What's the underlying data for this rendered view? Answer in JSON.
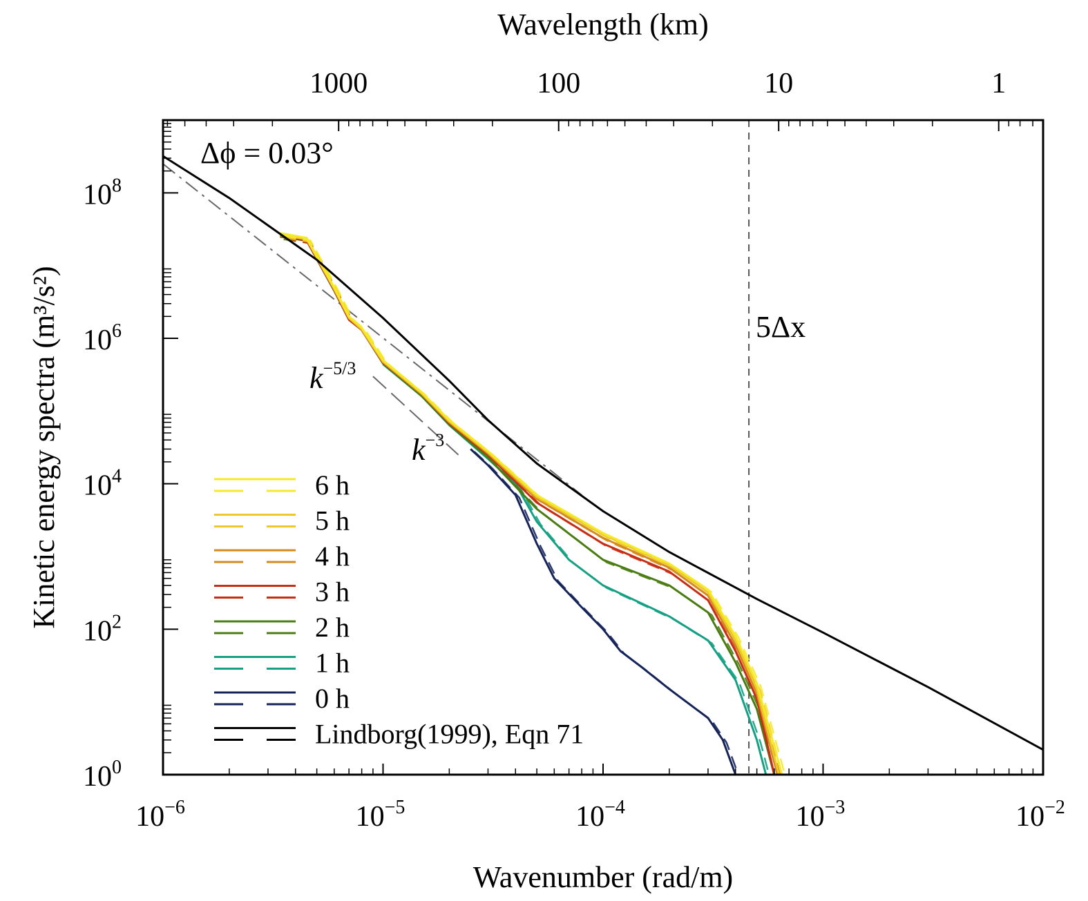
{
  "chart_data": {
    "type": "line",
    "scale": "log-log",
    "xlabel": "Wavenumber (rad/m)",
    "ylabel": "Kinetic energy spectra (m³/s²)",
    "top_xlabel": "Wavelength (km)",
    "xlim": [
      1e-06,
      0.01
    ],
    "ylim": [
      1,
      1000000000.0
    ],
    "x_ticks": [
      {
        "value": 1e-06,
        "base": "10",
        "exp": "−6"
      },
      {
        "value": 1e-05,
        "base": "10",
        "exp": "−5"
      },
      {
        "value": 0.0001,
        "base": "10",
        "exp": "−4"
      },
      {
        "value": 0.001,
        "base": "10",
        "exp": "−3"
      },
      {
        "value": 0.01,
        "base": "10",
        "exp": "−2"
      }
    ],
    "y_ticks": [
      {
        "value": 1,
        "base": "10",
        "exp": "0"
      },
      {
        "value": 100,
        "base": "10",
        "exp": "2"
      },
      {
        "value": 10000,
        "base": "10",
        "exp": "4"
      },
      {
        "value": 1000000,
        "base": "10",
        "exp": "6"
      },
      {
        "value": 100000000,
        "base": "10",
        "exp": "8"
      }
    ],
    "top_ticks": [
      {
        "km": 1000,
        "label": "1000"
      },
      {
        "km": 100,
        "label": "100"
      },
      {
        "km": 10,
        "label": "10"
      },
      {
        "km": 1,
        "label": "1"
      }
    ],
    "annotations": {
      "resolution": "Δϕ = 0.03°",
      "five_dx_label": "5Δx",
      "five_dx_k": 0.00046,
      "k53_base": "k",
      "k53_exp": "−5/3",
      "k3_base": "k",
      "k3_exp": "−3"
    },
    "reference_lines": [
      {
        "name": "k^-5/3",
        "points": [
          [
            1e-06,
            250000000.0
          ],
          [
            8e-05,
            7000
          ]
        ]
      },
      {
        "name": "k^-3",
        "points": [
          [
            9e-06,
            300000
          ],
          [
            2.2e-05,
            25000
          ]
        ]
      }
    ],
    "lindborg": {
      "name": "Lindborg(1999), Eqn 71",
      "color": "#000000",
      "points": [
        [
          1e-06,
          320000000.0
        ],
        [
          2e-06,
          85000000.0
        ],
        [
          5e-06,
          12000000.0
        ],
        [
          1e-05,
          1900000.0
        ],
        [
          2e-05,
          260000.0
        ],
        [
          3e-05,
          75000.0
        ],
        [
          5e-05,
          19000.0
        ],
        [
          0.0001,
          4200
        ],
        [
          0.0002,
          1150
        ],
        [
          0.0005,
          260
        ],
        [
          0.001,
          90
        ],
        [
          0.003,
          16
        ],
        [
          0.01,
          2.2
        ]
      ]
    },
    "series": [
      {
        "name": "6 h",
        "color": "#f5e92a",
        "points": [
          [
            3.4e-06,
            28000000.0
          ],
          [
            4.5e-06,
            24000000.0
          ],
          [
            6e-06,
            5000000.0
          ],
          [
            7e-06,
            2000000.0
          ],
          [
            8e-06,
            1400000.0
          ],
          [
            1e-05,
            500000.0
          ],
          [
            1.5e-05,
            180000.0
          ],
          [
            2e-05,
            75000.0
          ],
          [
            3e-05,
            28000.0
          ],
          [
            5e-05,
            7000.0
          ],
          [
            0.0001,
            2100.0
          ],
          [
            0.0002,
            800
          ],
          [
            0.0003,
            350
          ],
          [
            0.0004,
            80
          ],
          [
            0.0005,
            18
          ],
          [
            0.00065,
            1
          ]
        ]
      },
      {
        "name": "5 h",
        "color": "#edc82a",
        "points": [
          [
            3.4e-06,
            27000000.0
          ],
          [
            4.5e-06,
            23000000.0
          ],
          [
            6e-06,
            4800000.0
          ],
          [
            7e-06,
            1900000.0
          ],
          [
            8e-06,
            1350000.0
          ],
          [
            1e-05,
            480000.0
          ],
          [
            1.5e-05,
            175000.0
          ],
          [
            2e-05,
            72000.0
          ],
          [
            3e-05,
            27000.0
          ],
          [
            5e-05,
            6600.0
          ],
          [
            0.0001,
            2000.0
          ],
          [
            0.0002,
            760
          ],
          [
            0.0003,
            320
          ],
          [
            0.0004,
            70
          ],
          [
            0.0005,
            15
          ],
          [
            0.00063,
            1
          ]
        ]
      },
      {
        "name": "4 h",
        "color": "#d58a1e",
        "points": [
          [
            3.4e-06,
            26000000.0
          ],
          [
            4.5e-06,
            23000000.0
          ],
          [
            6e-06,
            4700000.0
          ],
          [
            7e-06,
            1900000.0
          ],
          [
            8e-06,
            1300000.0
          ],
          [
            1e-05,
            470000.0
          ],
          [
            1.5e-05,
            170000.0
          ],
          [
            2e-05,
            70000.0
          ],
          [
            3e-05,
            26000.0
          ],
          [
            5e-05,
            6200.0
          ],
          [
            0.0001,
            1800.0
          ],
          [
            0.0002,
            700
          ],
          [
            0.0003,
            290
          ],
          [
            0.0004,
            60
          ],
          [
            0.0005,
            13
          ],
          [
            0.00062,
            1
          ]
        ]
      },
      {
        "name": "3 h",
        "color": "#c72d14",
        "points": [
          [
            3.4e-06,
            26000000.0
          ],
          [
            4.5e-06,
            22000000.0
          ],
          [
            6e-06,
            4600000.0
          ],
          [
            7e-06,
            1800000.0
          ],
          [
            8e-06,
            1300000.0
          ],
          [
            1e-05,
            460000.0
          ],
          [
            1.5e-05,
            170000.0
          ],
          [
            2e-05,
            68000.0
          ],
          [
            3e-05,
            25000.0
          ],
          [
            5e-05,
            5500.0
          ],
          [
            0.0001,
            1500.0
          ],
          [
            0.0002,
            620
          ],
          [
            0.0003,
            250
          ],
          [
            0.0004,
            50
          ],
          [
            0.0005,
            11
          ],
          [
            0.0006,
            1
          ]
        ]
      },
      {
        "name": "2 h",
        "color": "#4a7c12",
        "points": [
          [
            3.4e-06,
            25000000.0
          ],
          [
            4.5e-06,
            22000000.0
          ],
          [
            6e-06,
            4500000.0
          ],
          [
            7e-06,
            1800000.0
          ],
          [
            8e-06,
            1300000.0
          ],
          [
            1e-05,
            450000.0
          ],
          [
            1.5e-05,
            160000.0
          ],
          [
            2e-05,
            65000.0
          ],
          [
            3e-05,
            23000.0
          ],
          [
            5e-05,
            4500.0
          ],
          [
            0.0001,
            900
          ],
          [
            0.0002,
            400
          ],
          [
            0.0003,
            170
          ],
          [
            0.0004,
            35
          ],
          [
            0.0005,
            8
          ],
          [
            0.0006,
            1
          ]
        ]
      },
      {
        "name": "1 h",
        "color": "#16a083",
        "points": [
          [
            1e-05,
            440000.0
          ],
          [
            1.5e-05,
            160000.0
          ],
          [
            2e-05,
            64000.0
          ],
          [
            3e-05,
            22000.0
          ],
          [
            4e-05,
            10000.0
          ],
          [
            5e-05,
            3000.0
          ],
          [
            7e-05,
            900
          ],
          [
            0.0001,
            400
          ],
          [
            0.0002,
            150
          ],
          [
            0.0003,
            70
          ],
          [
            0.0004,
            20
          ],
          [
            0.0005,
            3
          ],
          [
            0.00055,
            1
          ]
        ]
      },
      {
        "name": "0 h",
        "color": "#152359",
        "points": [
          [
            2.5e-05,
            30000.0
          ],
          [
            3e-05,
            18000.0
          ],
          [
            4e-05,
            7000.0
          ],
          [
            5e-05,
            1500.0
          ],
          [
            6e-05,
            500
          ],
          [
            8e-05,
            200
          ],
          [
            0.0001,
            100
          ],
          [
            0.00012,
            50
          ],
          [
            0.00015,
            30
          ],
          [
            0.0002,
            15
          ],
          [
            0.0003,
            6
          ],
          [
            0.00035,
            3
          ],
          [
            0.0004,
            1
          ]
        ]
      }
    ],
    "legend": [
      {
        "label": "6 h",
        "color": "#f5e92a"
      },
      {
        "label": "5 h",
        "color": "#edc82a"
      },
      {
        "label": "4 h",
        "color": "#d58a1e"
      },
      {
        "label": "3 h",
        "color": "#c72d14"
      },
      {
        "label": "2 h",
        "color": "#4a7c12"
      },
      {
        "label": "1 h",
        "color": "#16a083"
      },
      {
        "label": "0 h",
        "color": "#152359"
      },
      {
        "label": "Lindborg(1999), Eqn 71",
        "color": "#000000"
      }
    ]
  }
}
